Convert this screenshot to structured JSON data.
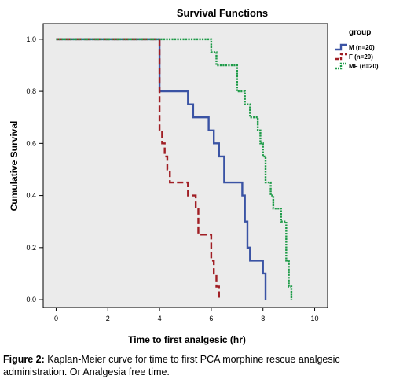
{
  "chart_data": {
    "type": "line",
    "step": true,
    "title": "Survival Functions",
    "xlabel": "Time to first analgesic (hr)",
    "ylabel": "Cumulative Survival",
    "xlim": [
      -0.5,
      10.5
    ],
    "ylim": [
      -0.03,
      1.06
    ],
    "x_ticks": [
      0,
      2,
      4,
      6,
      8,
      10
    ],
    "y_ticks": [
      0.0,
      0.2,
      0.4,
      0.6,
      0.8,
      1.0
    ],
    "x_tick_labels": [
      "0",
      "2",
      "4",
      "6",
      "8",
      "10"
    ],
    "y_tick_labels": [
      "0.0",
      "0.2",
      "0.4",
      "0.6",
      "0.8",
      "1.0"
    ],
    "grid": false,
    "legend": {
      "title": "group",
      "position": "right"
    },
    "series": [
      {
        "name": "M (n=20)",
        "color": "#3a53a4",
        "style": "solid",
        "x": [
          0,
          4.0,
          5.1,
          5.3,
          5.9,
          6.1,
          6.3,
          6.5,
          7.2,
          7.3,
          7.4,
          7.5,
          8.0,
          8.1
        ],
        "y": [
          1.0,
          0.8,
          0.75,
          0.7,
          0.65,
          0.6,
          0.55,
          0.45,
          0.4,
          0.3,
          0.2,
          0.15,
          0.1,
          0.0
        ]
      },
      {
        "name": "F (n=20)",
        "color": "#a01e24",
        "style": "dashed",
        "x": [
          0,
          4.0,
          4.1,
          4.2,
          4.3,
          4.4,
          5.1,
          5.4,
          5.5,
          6.0,
          6.1,
          6.2,
          6.3
        ],
        "y": [
          1.0,
          0.65,
          0.6,
          0.55,
          0.5,
          0.45,
          0.4,
          0.35,
          0.25,
          0.15,
          0.1,
          0.05,
          0.0
        ],
        "end_x": 6.3
      },
      {
        "name": "MF (n=20)",
        "color": "#1e9b48",
        "style": "dotted",
        "x": [
          0,
          6.0,
          6.2,
          7.0,
          7.3,
          7.5,
          7.8,
          7.9,
          8.0,
          8.1,
          8.3,
          8.4,
          8.7,
          8.9,
          9.0,
          9.1
        ],
        "y": [
          1.0,
          0.95,
          0.9,
          0.8,
          0.75,
          0.7,
          0.65,
          0.6,
          0.55,
          0.45,
          0.4,
          0.35,
          0.3,
          0.15,
          0.05,
          0.0
        ]
      }
    ]
  },
  "caption": {
    "label": "Figure 2:",
    "text": " Kaplan-Meier curve for time to first PCA morphine rescue analgesic administration. Or Analgesia free time."
  }
}
